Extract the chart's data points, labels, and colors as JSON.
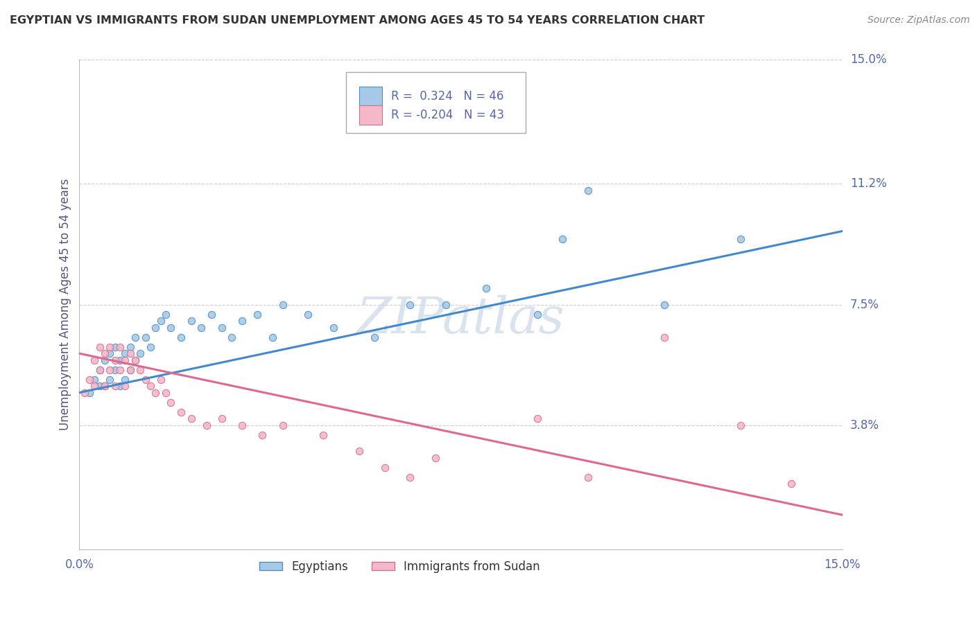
{
  "title": "EGYPTIAN VS IMMIGRANTS FROM SUDAN UNEMPLOYMENT AMONG AGES 45 TO 54 YEARS CORRELATION CHART",
  "source": "Source: ZipAtlas.com",
  "ylabel": "Unemployment Among Ages 45 to 54 years",
  "xlim": [
    0.0,
    0.15
  ],
  "ylim": [
    0.0,
    0.15
  ],
  "ytick_labels": [
    "3.8%",
    "7.5%",
    "11.2%",
    "15.0%"
  ],
  "ytick_values": [
    0.038,
    0.075,
    0.112,
    0.15
  ],
  "r_egyptian": 0.324,
  "n_egyptian": 46,
  "r_sudan": -0.204,
  "n_sudan": 43,
  "legend1_label": "Egyptians",
  "legend2_label": "Immigrants from Sudan",
  "blue_fill": "#a8c8e8",
  "blue_edge": "#5090c0",
  "pink_fill": "#f5b8c8",
  "pink_edge": "#d07090",
  "blue_line": "#4488cc",
  "pink_line": "#e06890",
  "watermark": "ZIPatlas",
  "title_color": "#333333",
  "source_color": "#888888",
  "axis_label_color": "#555577",
  "tick_color": "#5566aa",
  "bg_color": "#ffffff",
  "grid_color": "#cccccc",
  "eg_x": [
    0.002,
    0.003,
    0.004,
    0.004,
    0.005,
    0.005,
    0.006,
    0.006,
    0.007,
    0.007,
    0.008,
    0.008,
    0.009,
    0.009,
    0.01,
    0.01,
    0.011,
    0.011,
    0.012,
    0.013,
    0.014,
    0.015,
    0.016,
    0.017,
    0.018,
    0.02,
    0.022,
    0.024,
    0.026,
    0.028,
    0.03,
    0.032,
    0.035,
    0.038,
    0.04,
    0.045,
    0.05,
    0.058,
    0.065,
    0.072,
    0.08,
    0.09,
    0.095,
    0.1,
    0.115,
    0.13
  ],
  "eg_y": [
    0.048,
    0.052,
    0.05,
    0.055,
    0.05,
    0.058,
    0.052,
    0.06,
    0.055,
    0.062,
    0.05,
    0.058,
    0.052,
    0.06,
    0.055,
    0.062,
    0.058,
    0.065,
    0.06,
    0.065,
    0.062,
    0.068,
    0.07,
    0.072,
    0.068,
    0.065,
    0.07,
    0.068,
    0.072,
    0.068,
    0.065,
    0.07,
    0.072,
    0.065,
    0.075,
    0.072,
    0.068,
    0.065,
    0.075,
    0.075,
    0.08,
    0.072,
    0.095,
    0.11,
    0.075,
    0.095
  ],
  "su_x": [
    0.001,
    0.002,
    0.003,
    0.003,
    0.004,
    0.004,
    0.005,
    0.005,
    0.006,
    0.006,
    0.007,
    0.007,
    0.008,
    0.008,
    0.009,
    0.009,
    0.01,
    0.01,
    0.011,
    0.012,
    0.013,
    0.014,
    0.015,
    0.016,
    0.017,
    0.018,
    0.02,
    0.022,
    0.025,
    0.028,
    0.032,
    0.036,
    0.04,
    0.048,
    0.055,
    0.06,
    0.065,
    0.07,
    0.09,
    0.1,
    0.115,
    0.13,
    0.14
  ],
  "su_y": [
    0.048,
    0.052,
    0.05,
    0.058,
    0.055,
    0.062,
    0.05,
    0.06,
    0.055,
    0.062,
    0.05,
    0.058,
    0.055,
    0.062,
    0.05,
    0.058,
    0.055,
    0.06,
    0.058,
    0.055,
    0.052,
    0.05,
    0.048,
    0.052,
    0.048,
    0.045,
    0.042,
    0.04,
    0.038,
    0.04,
    0.038,
    0.035,
    0.038,
    0.035,
    0.03,
    0.025,
    0.022,
    0.028,
    0.04,
    0.022,
    0.065,
    0.038,
    0.02
  ]
}
